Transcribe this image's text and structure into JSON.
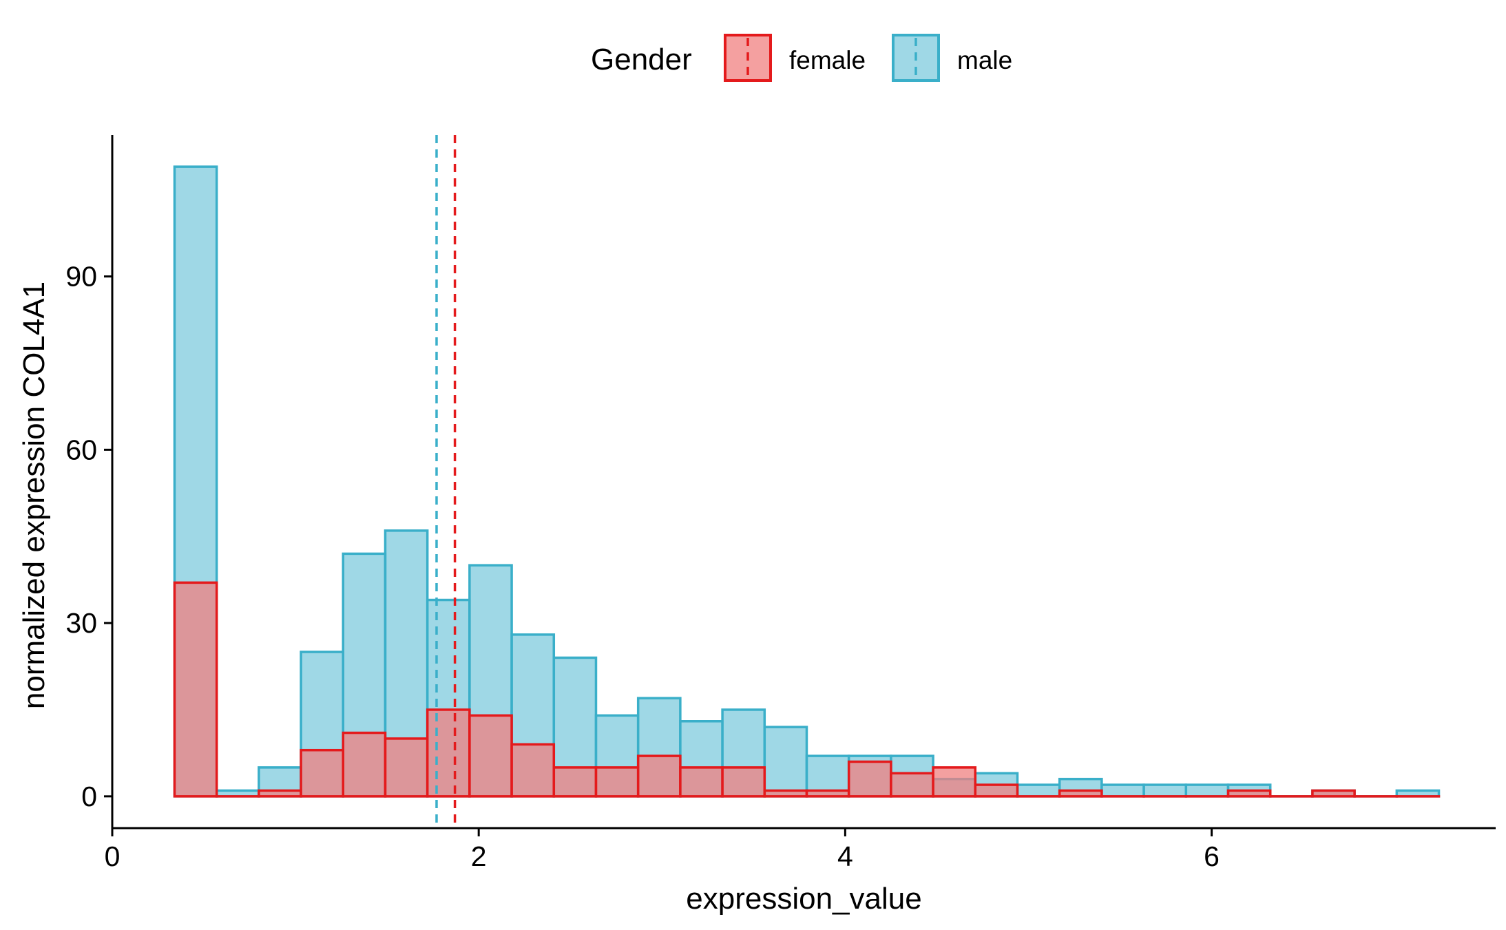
{
  "chart_data": {
    "type": "histogram",
    "title": "",
    "xlabel": "expression_value",
    "ylabel": "normalized expression COL4A1",
    "xlim": [
      0,
      7.55
    ],
    "ylim": [
      -5.5,
      114.5
    ],
    "x_ticks": [
      0,
      2,
      4,
      6
    ],
    "y_ticks": [
      0,
      30,
      60,
      90
    ],
    "grid": false,
    "legend": {
      "title": "Gender",
      "position": "top",
      "entries": [
        "female",
        "male"
      ]
    },
    "bin_edges": [
      0.34,
      0.57,
      0.8,
      1.03,
      1.26,
      1.49,
      1.72,
      1.95,
      2.18,
      2.41,
      2.64,
      2.87,
      3.1,
      3.33,
      3.56,
      3.79,
      4.02,
      4.25,
      4.48,
      4.71,
      4.94,
      5.17,
      5.4,
      5.63,
      5.86,
      6.09,
      6.32,
      6.55,
      6.78,
      7.01,
      7.24
    ],
    "series": [
      {
        "name": "female",
        "color": "#E41A1C",
        "fill": "#F08080",
        "mean": 1.87,
        "counts": [
          37,
          0,
          1,
          8,
          11,
          10,
          15,
          14,
          9,
          5,
          5,
          7,
          5,
          5,
          1,
          1,
          6,
          4,
          5,
          2,
          0,
          1,
          0,
          0,
          0,
          1,
          0,
          1,
          0,
          0
        ]
      },
      {
        "name": "male",
        "color": "#3AAFC9",
        "fill": "#87CEE0",
        "mean": 1.77,
        "counts": [
          109,
          1,
          5,
          25,
          42,
          46,
          34,
          40,
          28,
          24,
          14,
          17,
          13,
          15,
          12,
          7,
          7,
          7,
          3,
          4,
          2,
          3,
          2,
          2,
          2,
          2,
          0,
          1,
          0,
          1
        ]
      }
    ]
  }
}
